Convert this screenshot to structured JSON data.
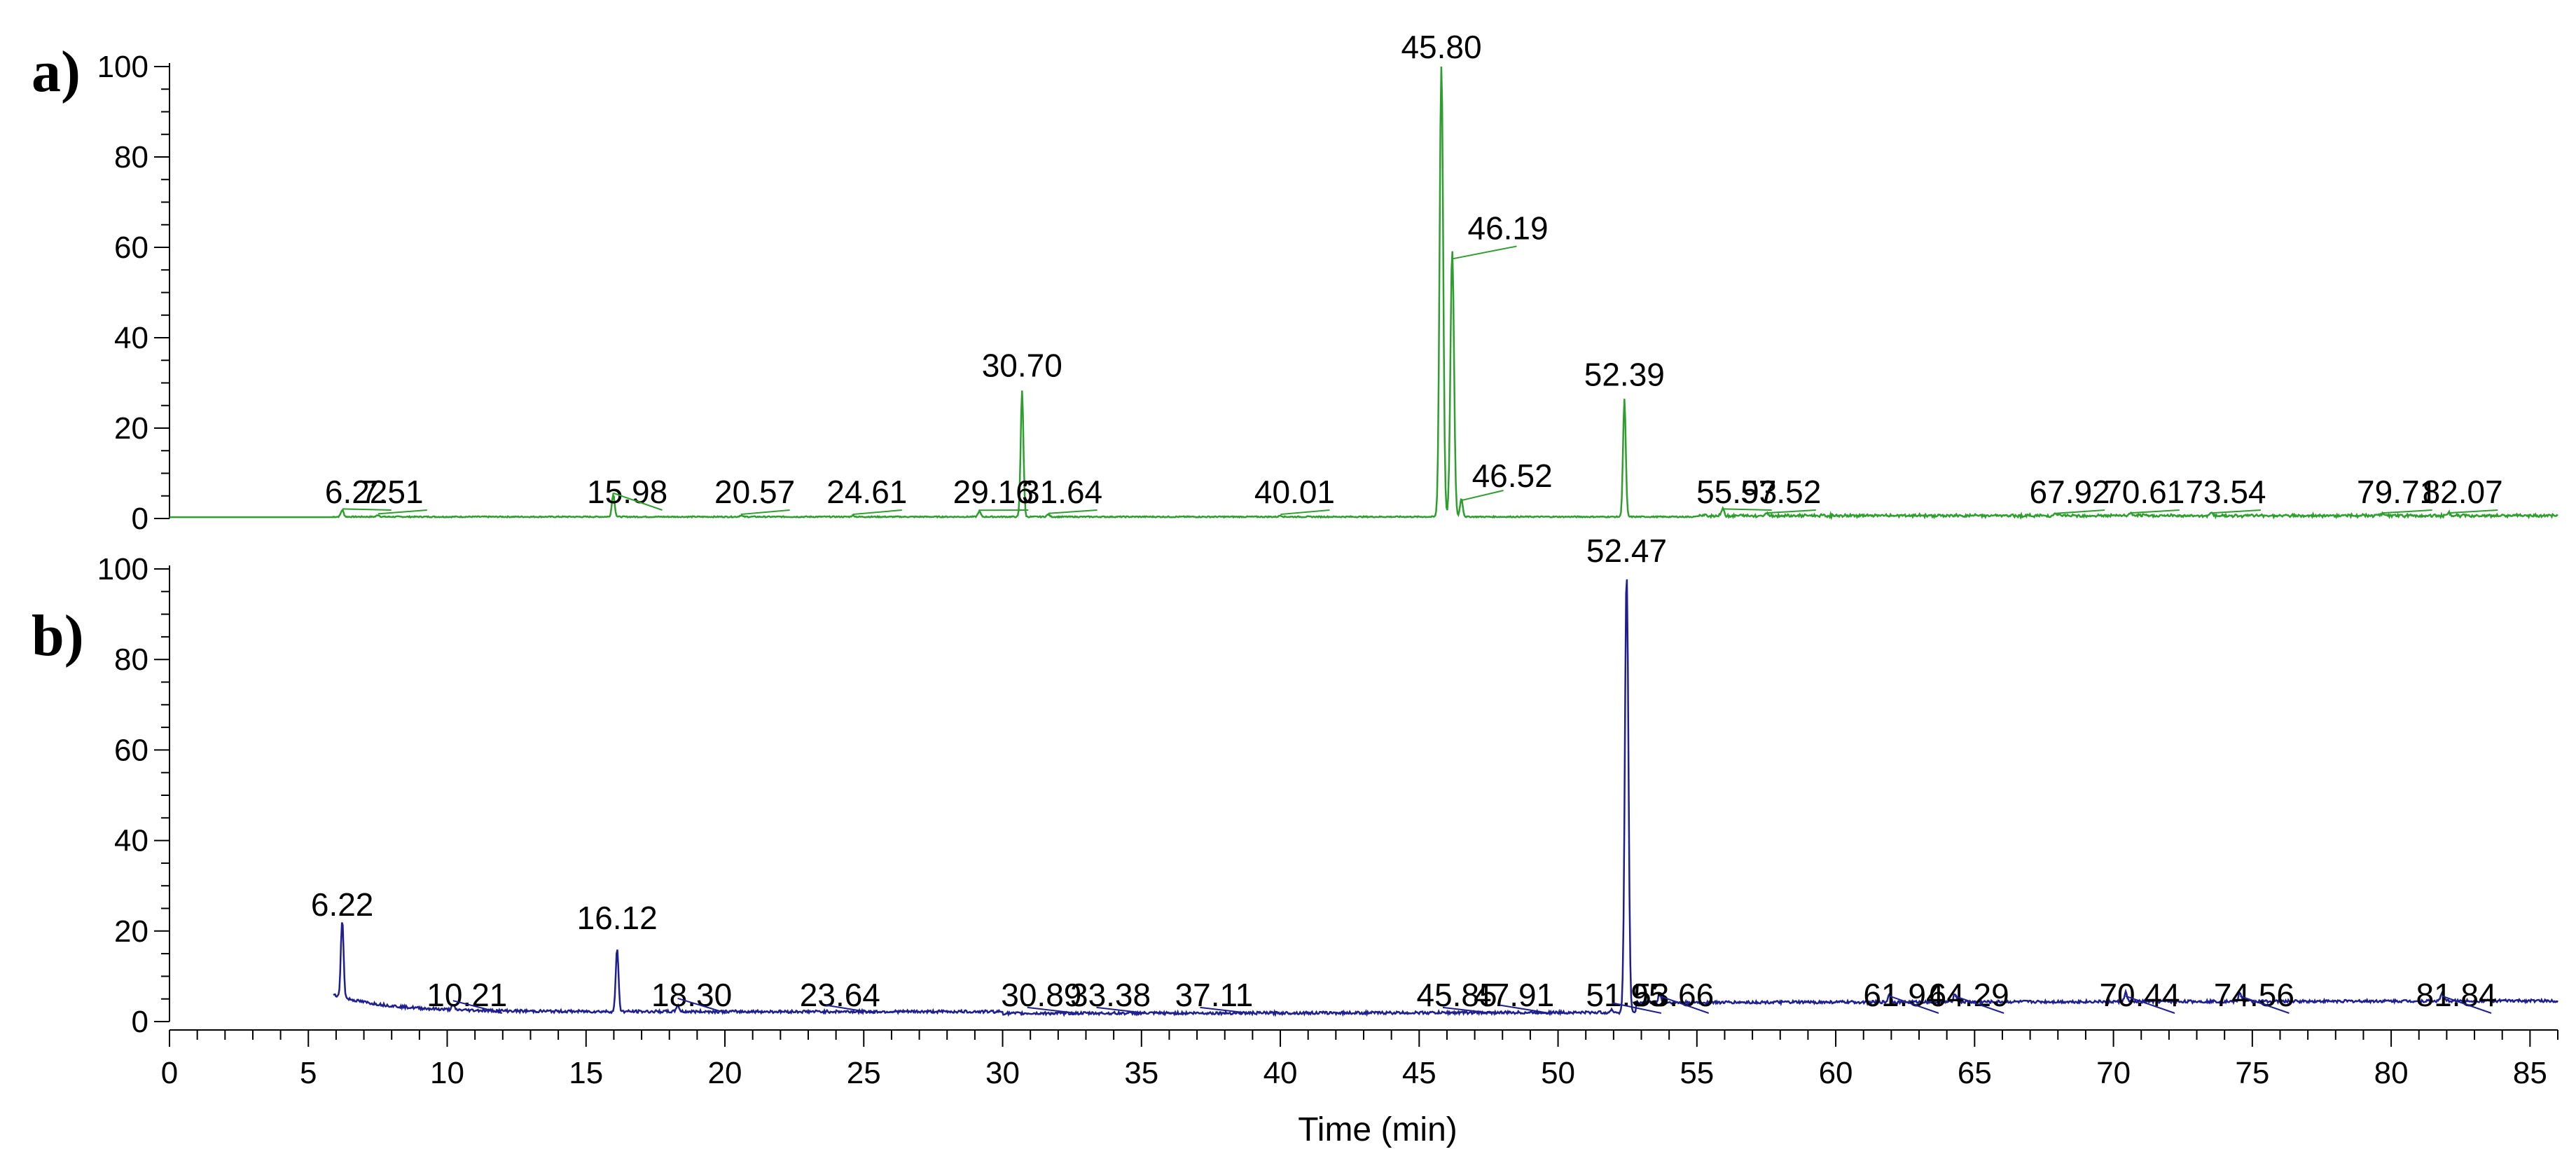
{
  "chart_data": [
    {
      "type": "line",
      "panel_label": "a)",
      "color": "#2e9e2e",
      "xlim": [
        0,
        86
      ],
      "ylim": [
        0,
        100
      ],
      "xlabel": "",
      "ylabel": "",
      "y_ticks": [
        0,
        20,
        40,
        60,
        80,
        100
      ],
      "baseline": 0.3,
      "peaks": [
        {
          "x": 6.22,
          "y": 1.5,
          "label": "6.22"
        },
        {
          "x": 7.51,
          "y": 0.4,
          "label": "7.51"
        },
        {
          "x": 15.98,
          "y": 5,
          "label": "15.98"
        },
        {
          "x": 20.57,
          "y": 0.3,
          "label": "20.57"
        },
        {
          "x": 24.61,
          "y": 0.3,
          "label": "24.61"
        },
        {
          "x": 29.16,
          "y": 1.2,
          "label": "29.16"
        },
        {
          "x": 30.7,
          "y": 28,
          "label": "30.70"
        },
        {
          "x": 31.64,
          "y": 0.5,
          "label": "31.64"
        },
        {
          "x": 40.01,
          "y": 0.3,
          "label": "40.01"
        },
        {
          "x": 45.8,
          "y": 100,
          "label": "45.80"
        },
        {
          "x": 46.19,
          "y": 59,
          "label": "46.19"
        },
        {
          "x": 46.52,
          "y": 4,
          "label": "46.52"
        },
        {
          "x": 52.39,
          "y": 26,
          "label": "52.39"
        },
        {
          "x": 55.93,
          "y": 1.5,
          "label": "55.93"
        },
        {
          "x": 57.52,
          "y": 0.6,
          "label": "57.52"
        },
        {
          "x": 67.92,
          "y": 0.5,
          "label": "67.92"
        },
        {
          "x": 70.61,
          "y": 0.6,
          "label": "70.61"
        },
        {
          "x": 73.54,
          "y": 0.6,
          "label": "73.54"
        },
        {
          "x": 79.71,
          "y": 0.6,
          "label": "79.71"
        },
        {
          "x": 82.07,
          "y": 0.6,
          "label": "82.07"
        }
      ]
    },
    {
      "type": "line",
      "panel_label": "b)",
      "color": "#1f1f8f",
      "xlim": [
        0,
        86
      ],
      "ylim": [
        0,
        100
      ],
      "xlabel": "Time (min)",
      "ylabel": "",
      "x_ticks": [
        0,
        5,
        10,
        15,
        20,
        25,
        30,
        35,
        40,
        45,
        50,
        55,
        60,
        65,
        70,
        75,
        80,
        85
      ],
      "y_ticks": [
        0,
        20,
        40,
        60,
        80,
        100
      ],
      "peaks": [
        {
          "x": 6.22,
          "y": 20,
          "label": "6.22"
        },
        {
          "x": 10.21,
          "y": 4,
          "label": "10.21"
        },
        {
          "x": 16.12,
          "y": 17,
          "label": "16.12"
        },
        {
          "x": 18.3,
          "y": 4.5,
          "label": "18.30"
        },
        {
          "x": 23.64,
          "y": 3,
          "label": "23.64"
        },
        {
          "x": 30.89,
          "y": 2.5,
          "label": "30.89"
        },
        {
          "x": 33.38,
          "y": 2.5,
          "label": "33.38"
        },
        {
          "x": 37.11,
          "y": 2.5,
          "label": "37.11"
        },
        {
          "x": 45.85,
          "y": 2.5,
          "label": "45.85"
        },
        {
          "x": 47.91,
          "y": 3,
          "label": "47.91"
        },
        {
          "x": 51.95,
          "y": 3.5,
          "label": "51.95"
        },
        {
          "x": 52.47,
          "y": 100,
          "label": "52.47"
        },
        {
          "x": 53.66,
          "y": 5,
          "label": "53.66"
        },
        {
          "x": 61.94,
          "y": 5,
          "label": "61.94"
        },
        {
          "x": 64.29,
          "y": 5,
          "label": "64.29"
        },
        {
          "x": 70.44,
          "y": 5,
          "label": "70.44"
        },
        {
          "x": 74.56,
          "y": 5,
          "label": "74.56"
        },
        {
          "x": 81.84,
          "y": 5,
          "label": "81.84"
        }
      ]
    }
  ]
}
